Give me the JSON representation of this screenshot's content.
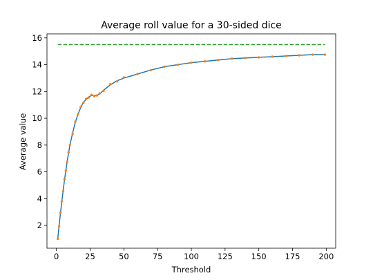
{
  "chart_data": {
    "type": "line",
    "title": "Average roll value for a 30-sided dice",
    "xlabel": "Threshold",
    "ylabel": "Average value",
    "xlim": [
      -7,
      207
    ],
    "ylim": [
      0.3,
      16.3
    ],
    "xticks": [
      0,
      25,
      50,
      75,
      100,
      125,
      150,
      175,
      200
    ],
    "yticks": [
      2,
      4,
      6,
      8,
      10,
      12,
      14,
      16
    ],
    "grid": false,
    "legend": "none",
    "series": [
      {
        "style": "solid",
        "color": "#1f77b4",
        "x": [
          1,
          2,
          3,
          4,
          5,
          6,
          7,
          8,
          9,
          10,
          12,
          14,
          16,
          18,
          20,
          22,
          24,
          26,
          28,
          30,
          32,
          35,
          40,
          45,
          50,
          60,
          70,
          80,
          90,
          100,
          110,
          120,
          130,
          140,
          150,
          160,
          170,
          180,
          190,
          199
        ],
        "y": [
          1.0,
          2.0,
          2.9,
          3.8,
          4.6,
          5.4,
          6.1,
          6.8,
          7.4,
          8.0,
          8.9,
          9.7,
          10.3,
          10.8,
          11.2,
          11.4,
          11.6,
          11.7,
          11.7,
          11.7,
          11.8,
          12.1,
          12.5,
          12.8,
          13.0,
          13.3,
          13.6,
          13.85,
          14.0,
          14.15,
          14.25,
          14.35,
          14.45,
          14.5,
          14.55,
          14.6,
          14.65,
          14.7,
          14.75,
          14.75
        ]
      },
      {
        "style": "markers",
        "color": "#ff7f0e",
        "x": [
          1,
          2,
          3,
          4,
          5,
          6,
          7,
          8,
          9,
          10,
          12,
          14,
          16,
          18,
          20,
          22,
          24,
          26,
          28,
          30,
          32,
          35,
          40,
          45,
          50,
          60,
          70,
          80,
          90,
          100,
          110,
          120,
          130,
          140,
          150,
          160,
          170,
          180,
          190,
          199
        ],
        "y": [
          1.0,
          1.95,
          2.95,
          3.8,
          4.55,
          5.45,
          6.1,
          6.75,
          7.45,
          8.0,
          8.85,
          9.75,
          10.3,
          10.85,
          11.15,
          11.45,
          11.55,
          11.75,
          11.65,
          11.7,
          11.85,
          12.05,
          12.55,
          12.75,
          13.05,
          13.3,
          13.6,
          13.85,
          14.0,
          14.15,
          14.25,
          14.35,
          14.45,
          14.5,
          14.55,
          14.6,
          14.65,
          14.7,
          14.75,
          14.75
        ]
      },
      {
        "style": "dashed",
        "color": "#2ca02c",
        "x": [
          1,
          199
        ],
        "y": [
          15.5,
          15.5
        ]
      }
    ]
  }
}
